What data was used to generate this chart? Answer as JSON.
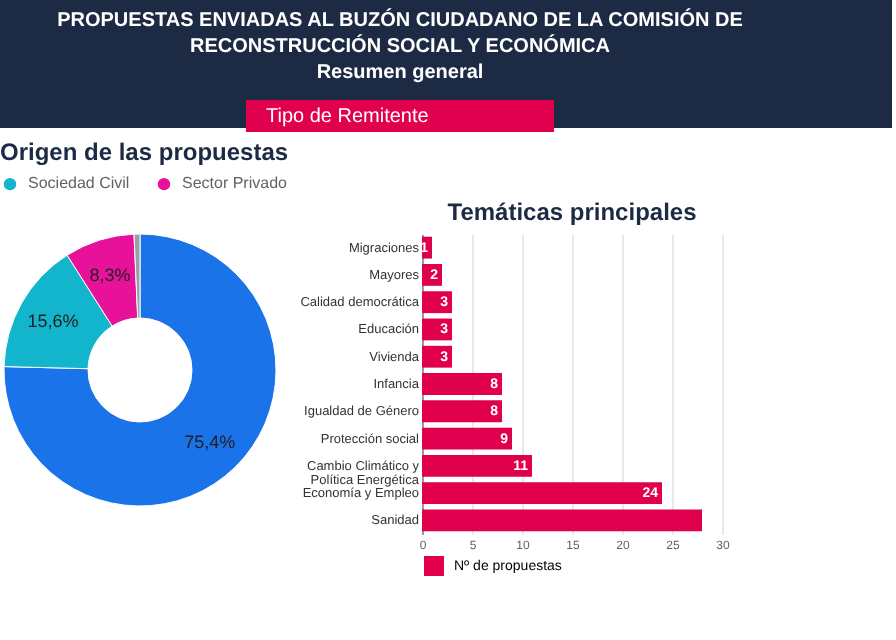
{
  "chart_data": [
    {
      "type": "other",
      "title": "PROPUESTAS ENVIADAS AL BUZÓN CIUDADANO DE LA COMISIÓN DE RECONSTRUCCIÓN SOCIAL Y ECONÓMICA",
      "subtitle": "Resumen general",
      "annotations": [
        "Tipo de Remitente"
      ]
    },
    {
      "type": "donut",
      "title": "Origen de las propuestas",
      "categories": [
        null,
        "Sociedad Civil",
        "Sector Privado",
        null
      ],
      "values": [
        75.4,
        15.6,
        8.3,
        0.7
      ],
      "colors": [
        "#1a73e8",
        "#12b5cb",
        "#e8119a",
        "#9aa0a6"
      ],
      "value_labels": [
        "75,4%",
        "15,6%",
        "8,3%",
        null
      ],
      "legend": "top"
    },
    {
      "type": "bar",
      "orientation": "horizontal",
      "title": "Temáticas principales",
      "categories": [
        "Migraciones",
        "Mayores",
        "Calidad democrática",
        "Educación",
        "Vivienda",
        "Infancia",
        "Igualdad de Género",
        "Protección social",
        "Cambio Climático y Política Energética",
        "Economía y Empleo",
        "Sanidad"
      ],
      "series": [
        {
          "name": "Nº de propuestas",
          "color": "#e0004d",
          "values": [
            1,
            2,
            3,
            3,
            3,
            8,
            8,
            9,
            11,
            24,
            28
          ]
        }
      ],
      "value_labels": [
        "1",
        "2",
        "3",
        "3",
        "3",
        "8",
        "8",
        "9",
        "11",
        "24",
        null
      ],
      "xlim": [
        0,
        30
      ],
      "xticks": [
        0,
        5,
        10,
        15,
        20,
        25,
        30
      ],
      "grid": "x",
      "legend": "bottom"
    }
  ]
}
